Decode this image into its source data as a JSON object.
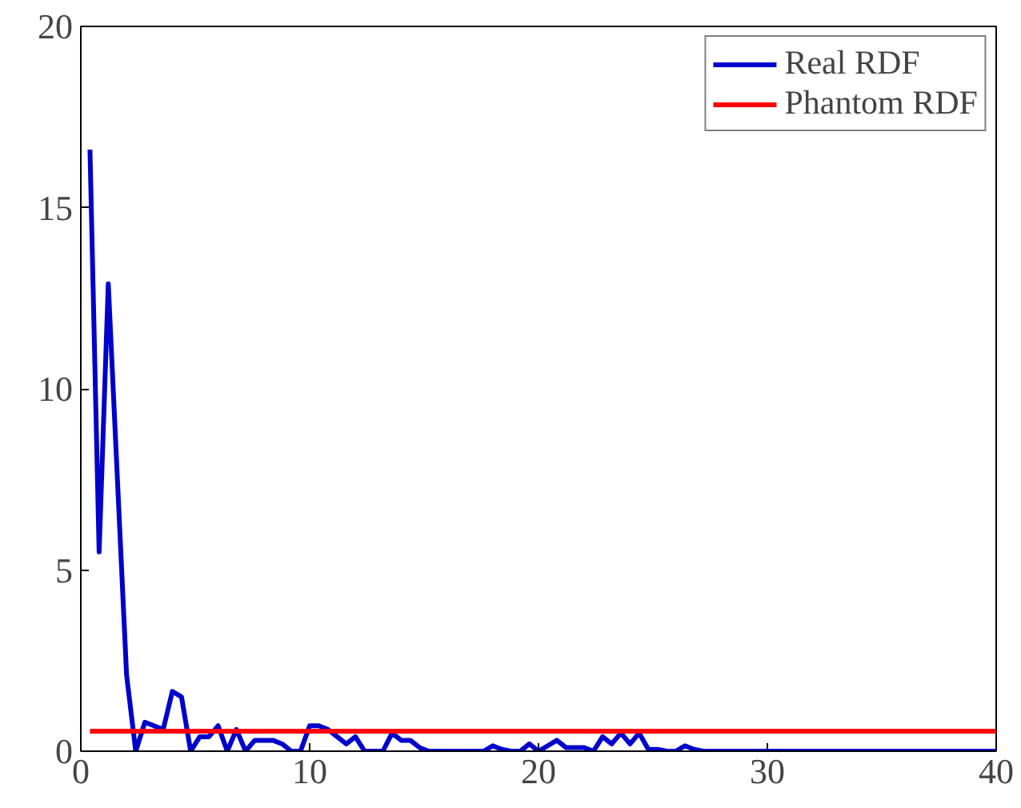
{
  "chart_data": {
    "type": "line",
    "xlim": [
      0,
      40
    ],
    "ylim": [
      0,
      20
    ],
    "xticks": [
      0,
      10,
      20,
      30,
      40
    ],
    "yticks": [
      0,
      5,
      10,
      15,
      20
    ],
    "grid": false,
    "legend": "top right",
    "series": [
      {
        "name": "Real RDF",
        "color": "#0000cc",
        "x": [
          0.4,
          0.8,
          1.2,
          1.6,
          2.0,
          2.4,
          2.8,
          3.2,
          3.6,
          4.0,
          4.4,
          4.8,
          5.2,
          5.6,
          6.0,
          6.4,
          6.8,
          7.2,
          7.6,
          8.0,
          8.4,
          8.8,
          9.2,
          9.6,
          10.0,
          10.4,
          10.8,
          11.2,
          11.6,
          12.0,
          12.4,
          12.8,
          13.2,
          13.6,
          14.0,
          14.4,
          14.8,
          15.2,
          17.6,
          18.0,
          18.4,
          18.8,
          19.2,
          19.6,
          20.0,
          20.4,
          20.8,
          21.2,
          22.0,
          22.4,
          22.8,
          23.2,
          23.6,
          24.0,
          24.4,
          24.8,
          25.2,
          25.6,
          26.0,
          26.4,
          26.8,
          27.2,
          40.0
        ],
        "values": [
          16.6,
          5.5,
          12.9,
          7.5,
          2.1,
          0.0,
          0.8,
          0.7,
          0.6,
          1.65,
          1.5,
          0.0,
          0.4,
          0.4,
          0.7,
          0.0,
          0.6,
          0.0,
          0.3,
          0.3,
          0.3,
          0.2,
          0.0,
          0.0,
          0.7,
          0.7,
          0.6,
          0.4,
          0.2,
          0.4,
          0.0,
          0.0,
          0.0,
          0.5,
          0.3,
          0.3,
          0.1,
          0.0,
          0.0,
          0.15,
          0.05,
          0.0,
          0.0,
          0.2,
          0.0,
          0.15,
          0.3,
          0.1,
          0.1,
          0.0,
          0.4,
          0.2,
          0.5,
          0.2,
          0.5,
          0.05,
          0.05,
          0.0,
          0.0,
          0.15,
          0.05,
          0.0,
          0.0
        ]
      },
      {
        "name": "Phantom RDF",
        "color": "#ff0000",
        "x": [
          0.4,
          40.0
        ],
        "values": [
          0.55,
          0.55
        ]
      }
    ]
  }
}
